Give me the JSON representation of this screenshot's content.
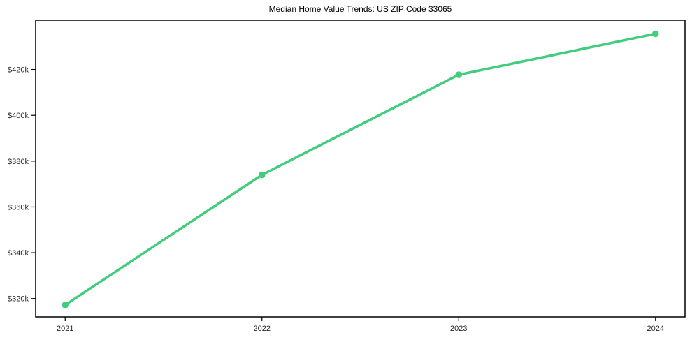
{
  "chart_data": {
    "type": "line",
    "title": "Median Home Value Trends: US ZIP Code 33065",
    "xlabel": "",
    "ylabel": "",
    "x": [
      2021,
      2022,
      2023,
      2024
    ],
    "x_tick_labels": [
      "2021",
      "2022",
      "2023",
      "2024"
    ],
    "series": [
      {
        "name": "Median Home Value",
        "values": [
          317200,
          374000,
          417700,
          435600
        ],
        "color": "#41cd7d",
        "marker": "circle"
      }
    ],
    "xlim": [
      2020.85,
      2024.15
    ],
    "ylim": [
      312000,
      441500
    ],
    "y_ticks": [
      320000,
      340000,
      360000,
      380000,
      400000,
      420000
    ],
    "y_tick_labels": [
      "$320k",
      "$340k",
      "$360k",
      "$380k",
      "$400k",
      "$420k"
    ],
    "grid": false,
    "legend_position": "none"
  },
  "styles": {
    "accent_color": "#41cd7d",
    "frame_color": "#000000",
    "text_color": "#262626",
    "background_color": "#ffffff"
  }
}
